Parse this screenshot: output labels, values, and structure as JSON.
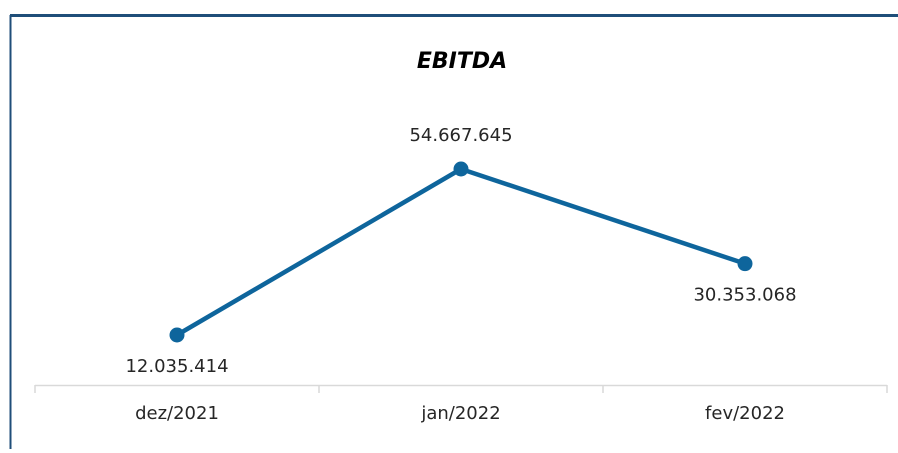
{
  "chart_data": {
    "type": "line",
    "title": "EBITDA",
    "categories": [
      "dez/2021",
      "jan/2022",
      "fev/2022"
    ],
    "series": [
      {
        "name": null,
        "color": "#0e659c",
        "values": [
          12035414,
          54667645,
          30353068
        ],
        "value_labels": [
          "12.035.414",
          "54.667.645",
          "30.353.068"
        ]
      }
    ]
  }
}
